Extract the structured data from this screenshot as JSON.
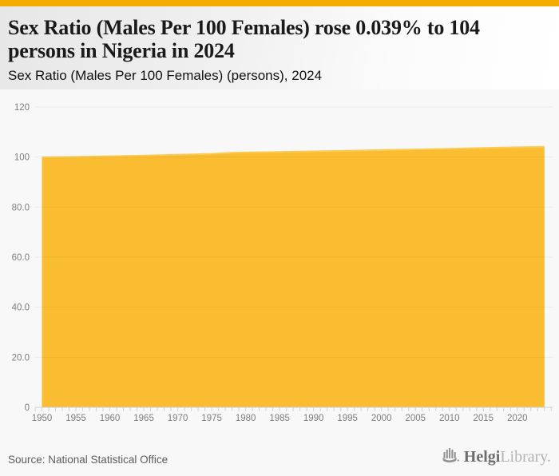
{
  "page": {
    "topbar_color": "#F5AC00",
    "background": "#f8f8f8"
  },
  "header": {
    "title": "Sex Ratio (Males Per 100 Females) rose 0.039% to 104 persons in Nigeria in 2024",
    "subtitle": "Sex Ratio (Males Per 100 Females) (persons), 2024"
  },
  "chart_data": {
    "type": "area",
    "title": "Sex Ratio (Males Per 100 Females) (persons), 2024",
    "series": [
      {
        "name": "Sex Ratio (Males Per 100 Females)",
        "x": [
          1950,
          1955,
          1960,
          1965,
          1970,
          1975,
          1978,
          1980,
          1985,
          1990,
          1995,
          2000,
          2005,
          2010,
          2015,
          2020,
          2024
        ],
        "values": [
          99.9,
          100.1,
          100.35,
          100.6,
          100.95,
          101.3,
          101.7,
          101.85,
          102.05,
          102.3,
          102.55,
          102.8,
          103.05,
          103.35,
          103.65,
          103.9,
          104.1
        ]
      }
    ],
    "xlabel": "",
    "ylabel": "",
    "xlim": [
      1949,
      2025.2
    ],
    "ylim": [
      0,
      120
    ],
    "grid": true,
    "legend_position": "none",
    "y_ticks": [
      {
        "value": 0,
        "label": "0"
      },
      {
        "value": 20,
        "label": "20.0"
      },
      {
        "value": 40,
        "label": "40.0"
      },
      {
        "value": 60,
        "label": "60.0"
      },
      {
        "value": 80,
        "label": "80.0"
      },
      {
        "value": 100,
        "label": "100"
      },
      {
        "value": 120,
        "label": "120"
      }
    ],
    "x_tick_labels": [
      1950,
      1955,
      1960,
      1965,
      1970,
      1975,
      1980,
      1985,
      1990,
      1995,
      2000,
      2005,
      2010,
      2015,
      2020
    ],
    "x_minor_tick_every": 1,
    "colors": {
      "area_fill": "#FABD32",
      "area_edge": "#FBCB55",
      "gridline": "rgba(0,0,0,0.055)",
      "axis_line": "#c9d2de",
      "tick_label": "#7d7d7d"
    }
  },
  "footer": {
    "source": "Source: National Statistical Office",
    "logo": {
      "icon": "helgi-bars-icon",
      "brand_primary": "Helgi",
      "brand_secondary": "Library."
    }
  }
}
